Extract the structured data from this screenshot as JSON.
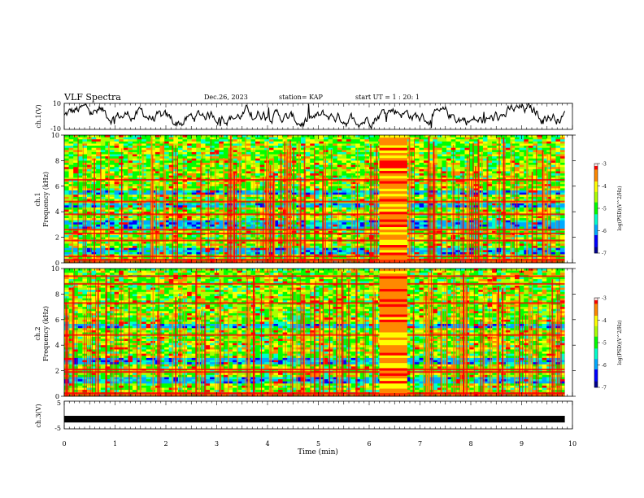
{
  "header": {
    "title": "VLF Spectra",
    "date": "Dec.26, 2023",
    "station": "station= KAP",
    "start_time": "start UT =  1 : 20: 1"
  },
  "chart_data": [
    {
      "id": "ch1-waveform",
      "type": "line",
      "ylabel": "ch.1(V)",
      "ylim": [
        -10,
        10
      ],
      "yticks": [
        "10",
        "-10"
      ],
      "xlim": [
        0,
        10
      ],
      "series": [
        {
          "color": "#000000"
        }
      ]
    },
    {
      "id": "ch1-spectrogram",
      "type": "heatmap",
      "ylabel_lines": [
        "ch.1",
        "Frequency (kHz)"
      ],
      "ylim": [
        0,
        10
      ],
      "yticks": [
        "0",
        "2",
        "4",
        "6",
        "8",
        "10"
      ],
      "xlim": [
        0,
        9.85
      ],
      "bands_khz": [
        0.25,
        0.5,
        1.75,
        2.3,
        2.6,
        3.8,
        4.8,
        6.5
      ],
      "quiet_bands_khz": [
        [
          2.7,
          3.3
        ],
        [
          4.4,
          4.7
        ],
        [
          5.3,
          5.6
        ],
        [
          0.6,
          1.2
        ]
      ],
      "burst_minutes": [
        6.2,
        6.75
      ],
      "colorbar": {
        "label": "log(PSD)(V^2/Hz)",
        "ticks": [
          "-3",
          "-4",
          "-5",
          "-6",
          "-7"
        ],
        "range": [
          -7,
          -3
        ]
      }
    },
    {
      "id": "ch2-spectrogram",
      "type": "heatmap",
      "ylabel_lines": [
        "ch.2",
        "Frequency (kHz)"
      ],
      "ylim": [
        0,
        10
      ],
      "yticks": [
        "0",
        "2",
        "4",
        "6",
        "8",
        "10"
      ],
      "xlim": [
        0,
        9.85
      ],
      "bands_khz": [
        0.25,
        1.9,
        2.1,
        4.8,
        7.3,
        8.8,
        9.4
      ],
      "quiet_bands_khz": [
        [
          2.5,
          3.0
        ],
        [
          1.0,
          1.5
        ],
        [
          5.3,
          5.6
        ]
      ],
      "burst_minutes": [
        6.2,
        6.75
      ],
      "colorbar": {
        "label": "log(PSD)(V^2/Hz)",
        "ticks": [
          "-3",
          "-4",
          "-5",
          "-6",
          "-7"
        ],
        "range": [
          -7,
          -3
        ]
      }
    },
    {
      "id": "ch3-waveform",
      "type": "line",
      "ylabel": "ch.3(V)",
      "ylim": [
        -5,
        5
      ],
      "yticks": [
        "5",
        "-5"
      ],
      "xlim": [
        0,
        9.85
      ],
      "series": [
        {
          "color": "#000000",
          "values_mean": -1.5,
          "band_halfwidth": 0.4
        }
      ]
    }
  ],
  "time_axis": {
    "label": "Time (min)",
    "ticks": [
      "0",
      "1",
      "2",
      "3",
      "4",
      "5",
      "6",
      "7",
      "8",
      "9",
      "10"
    ],
    "range": [
      0,
      10
    ]
  },
  "colormap": [
    "#000090",
    "#0000ff",
    "#00aaff",
    "#00ffcc",
    "#00ff00",
    "#aaff00",
    "#ffff00",
    "#ff8800",
    "#ff0000",
    "#ffffff"
  ]
}
